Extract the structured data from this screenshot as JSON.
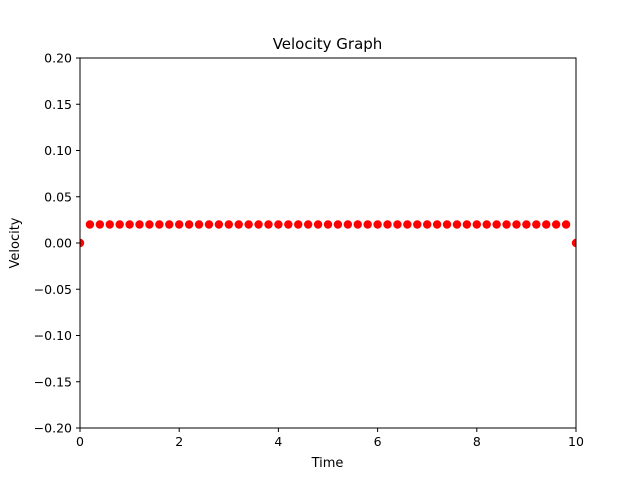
{
  "chart_data": {
    "type": "scatter",
    "title": "Velocity Graph",
    "xlabel": "Time",
    "ylabel": "Velocity",
    "xlim": [
      0,
      10
    ],
    "ylim": [
      -0.2,
      0.2
    ],
    "grid": false,
    "x_ticks": [
      0,
      2,
      4,
      6,
      8,
      10
    ],
    "x_tick_labels": [
      "0",
      "2",
      "4",
      "6",
      "8",
      "10"
    ],
    "y_ticks": [
      -0.2,
      -0.15,
      -0.1,
      -0.05,
      0.0,
      0.05,
      0.1,
      0.15,
      0.2
    ],
    "y_tick_labels": [
      "−0.20",
      "−0.15",
      "−0.10",
      "−0.05",
      "0.00",
      "0.05",
      "0.10",
      "0.15",
      "0.20"
    ],
    "series": [
      {
        "color": "#ff0000",
        "marker": "circle",
        "x": [
          0,
          0.2,
          0.4,
          0.6,
          0.8,
          1.0,
          1.2,
          1.4,
          1.6,
          1.8,
          2.0,
          2.2,
          2.4,
          2.6,
          2.8,
          3.0,
          3.2,
          3.4,
          3.6,
          3.8,
          4.0,
          4.2,
          4.4,
          4.6,
          4.8,
          5.0,
          5.2,
          5.4,
          5.6,
          5.8,
          6.0,
          6.2,
          6.4,
          6.6,
          6.8,
          7.0,
          7.2,
          7.4,
          7.6,
          7.8,
          8.0,
          8.2,
          8.4,
          8.6,
          8.8,
          9.0,
          9.2,
          9.4,
          9.6,
          9.8,
          10.0
        ],
        "y": [
          0.0,
          0.02,
          0.02,
          0.02,
          0.02,
          0.02,
          0.02,
          0.02,
          0.02,
          0.02,
          0.02,
          0.02,
          0.02,
          0.02,
          0.02,
          0.02,
          0.02,
          0.02,
          0.02,
          0.02,
          0.02,
          0.02,
          0.02,
          0.02,
          0.02,
          0.02,
          0.02,
          0.02,
          0.02,
          0.02,
          0.02,
          0.02,
          0.02,
          0.02,
          0.02,
          0.02,
          0.02,
          0.02,
          0.02,
          0.02,
          0.02,
          0.02,
          0.02,
          0.02,
          0.02,
          0.02,
          0.02,
          0.02,
          0.02,
          0.02,
          0.0
        ]
      }
    ]
  }
}
